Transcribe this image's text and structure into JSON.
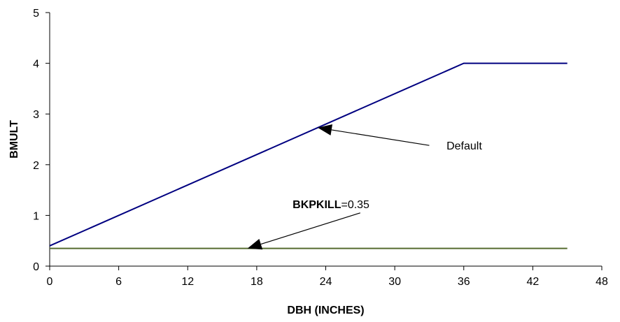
{
  "chart_data": {
    "type": "line",
    "title": "",
    "xlabel": "DBH (INCHES)",
    "ylabel": "BMULT",
    "xlim": [
      0,
      48
    ],
    "ylim": [
      0,
      5
    ],
    "xticks": [
      0,
      6,
      12,
      18,
      24,
      30,
      36,
      42,
      48
    ],
    "yticks": [
      0,
      1,
      2,
      3,
      4,
      5
    ],
    "grid": false,
    "legend": "none",
    "series": [
      {
        "name": "",
        "color": "#000080",
        "x": [
          0,
          36,
          45
        ],
        "y": [
          0.4,
          4,
          4
        ]
      },
      {
        "name": "",
        "color": "#556B2F",
        "x": [
          0,
          45
        ],
        "y": [
          0.35,
          0.35
        ]
      }
    ],
    "annotations": [
      {
        "text": "Default",
        "bold_prefix": "",
        "text_x": 34.5,
        "text_y": 2.3,
        "arrow_from_x": 33,
        "arrow_from_y": 2.38,
        "arrow_to_x": 23.3,
        "arrow_to_y": 2.73,
        "anchor": "start"
      },
      {
        "text": "=0.35",
        "bold_prefix": "BKPKILL",
        "text_x": 27.8,
        "text_y": 1.14,
        "arrow_from_x": 27,
        "arrow_from_y": 1.05,
        "arrow_to_x": 17.2,
        "arrow_to_y": 0.35,
        "anchor": "end"
      }
    ]
  }
}
